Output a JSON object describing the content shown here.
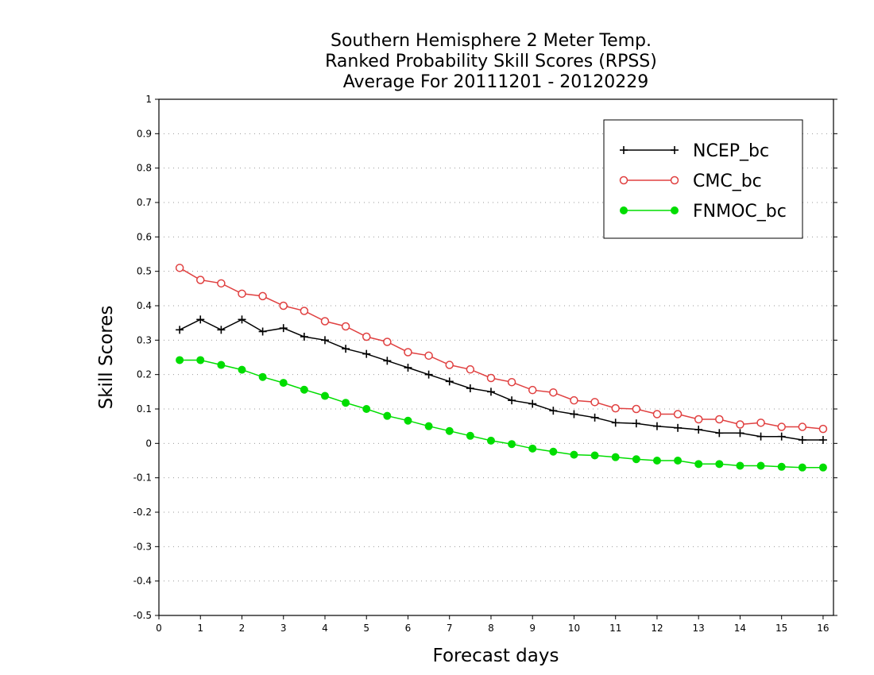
{
  "chart_data": {
    "type": "line",
    "title_lines": [
      "Southern Hemisphere 2 Meter Temp.",
      "Ranked Probability Skill Scores (RPSS)",
      "Average For 20111201 - 20120229"
    ],
    "xlabel": "Forecast days",
    "ylabel": "Skill Scores",
    "xlim": [
      0,
      16.25
    ],
    "ylim": [
      -0.5,
      1
    ],
    "xticks": [
      0,
      1,
      2,
      3,
      4,
      5,
      6,
      7,
      8,
      9,
      10,
      11,
      12,
      13,
      14,
      15,
      16
    ],
    "xtick_labels": [
      "0",
      "1",
      "2",
      "3",
      "4",
      "5",
      "6",
      "7",
      "8",
      "9",
      "10",
      "11",
      "12",
      "13",
      "14",
      "15",
      "16"
    ],
    "yticks": [
      -0.5,
      -0.4,
      -0.3,
      -0.2,
      -0.1,
      0,
      0.1,
      0.2,
      0.3,
      0.4,
      0.5,
      0.6,
      0.7,
      0.8,
      0.9,
      1
    ],
    "ytick_labels": [
      "-0.5",
      "-0.4",
      "-0.3",
      "-0.2",
      "-0.1",
      "0",
      "0.1",
      "0.2",
      "0.3",
      "0.4",
      "0.5",
      "0.6",
      "0.7",
      "0.8",
      "0.9",
      "1"
    ],
    "grid": "horizontal dotted",
    "legend_position": "top-right",
    "x": [
      0.5,
      1,
      1.5,
      2,
      2.5,
      3,
      3.5,
      4,
      4.5,
      5,
      5.5,
      6,
      6.5,
      7,
      7.5,
      8,
      8.5,
      9,
      9.5,
      10,
      10.5,
      11,
      11.5,
      12,
      12.5,
      13,
      13.5,
      14,
      14.5,
      15,
      15.5,
      16
    ],
    "series": [
      {
        "name": "NCEP_bc",
        "color": "#000000",
        "marker": "plus",
        "values": [
          0.33,
          0.36,
          0.33,
          0.36,
          0.325,
          0.335,
          0.31,
          0.3,
          0.275,
          0.26,
          0.24,
          0.22,
          0.2,
          0.18,
          0.16,
          0.15,
          0.125,
          0.115,
          0.095,
          0.085,
          0.075,
          0.06,
          0.058,
          0.05,
          0.045,
          0.04,
          0.03,
          0.03,
          0.02,
          0.02,
          0.01,
          0.01
        ]
      },
      {
        "name": "CMC_bc",
        "color": "#e04040",
        "marker": "open-circle",
        "values": [
          0.51,
          0.475,
          0.465,
          0.435,
          0.428,
          0.4,
          0.385,
          0.355,
          0.34,
          0.31,
          0.295,
          0.265,
          0.255,
          0.228,
          0.215,
          0.19,
          0.178,
          0.155,
          0.148,
          0.125,
          0.12,
          0.102,
          0.1,
          0.085,
          0.085,
          0.07,
          0.07,
          0.055,
          0.06,
          0.048,
          0.048,
          0.042
        ]
      },
      {
        "name": "FNMOC_bc",
        "color": "#00dd00",
        "marker": "filled-circle",
        "values": [
          0.242,
          0.242,
          0.228,
          0.214,
          0.193,
          0.176,
          0.156,
          0.138,
          0.118,
          0.1,
          0.08,
          0.066,
          0.05,
          0.036,
          0.022,
          0.008,
          -0.002,
          -0.015,
          -0.024,
          -0.033,
          -0.035,
          -0.04,
          -0.046,
          -0.05,
          -0.05,
          -0.06,
          -0.06,
          -0.065,
          -0.065,
          -0.068,
          -0.07,
          -0.07
        ]
      }
    ]
  }
}
